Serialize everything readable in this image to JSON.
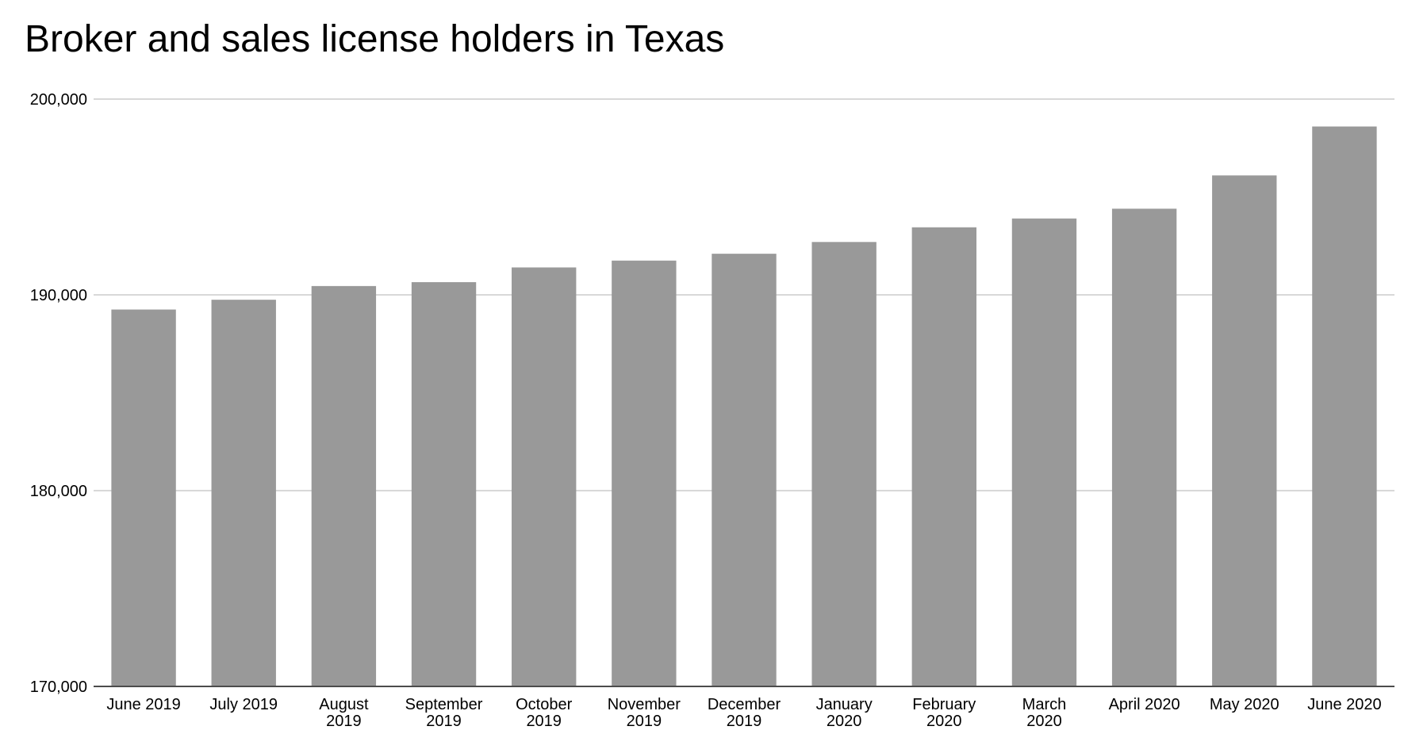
{
  "chart_data": {
    "type": "bar",
    "title": "Broker and sales license holders in Texas",
    "xlabel": "",
    "ylabel": "",
    "ylim": [
      170000,
      200000
    ],
    "yticks": [
      170000,
      180000,
      190000,
      200000
    ],
    "ytick_labels": [
      "170,000",
      "180,000",
      "190,000",
      "200,000"
    ],
    "grid": true,
    "legend": "none",
    "bar_color": "#999999",
    "grid_color": "#cccccc",
    "categories": [
      "June 2019",
      "July 2019",
      "August 2019",
      "September 2019",
      "October 2019",
      "November 2019",
      "December 2019",
      "January 2020",
      "February 2020",
      "March 2020",
      "April 2020",
      "May 2020",
      "June 2020"
    ],
    "category_lines": [
      [
        "June 2019"
      ],
      [
        "July 2019"
      ],
      [
        "August",
        "2019"
      ],
      [
        "September",
        "2019"
      ],
      [
        "October",
        "2019"
      ],
      [
        "November",
        "2019"
      ],
      [
        "December",
        "2019"
      ],
      [
        "January",
        "2020"
      ],
      [
        "February",
        "2020"
      ],
      [
        "March",
        "2020"
      ],
      [
        "April 2020"
      ],
      [
        "May 2020"
      ],
      [
        "June 2020"
      ]
    ],
    "values": [
      189250,
      189750,
      190450,
      190650,
      191400,
      191750,
      192100,
      192700,
      193450,
      193900,
      194400,
      196100,
      198600
    ]
  }
}
